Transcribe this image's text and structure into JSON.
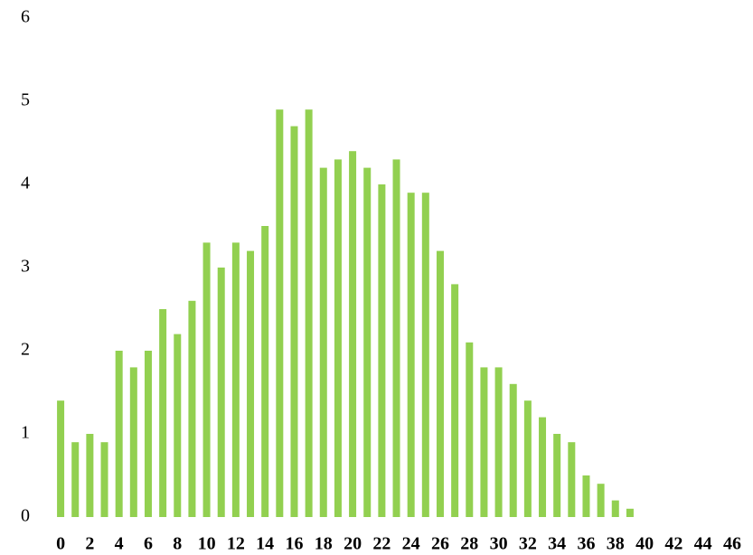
{
  "chart_data": {
    "type": "bar",
    "categories": [
      "0",
      null,
      "2",
      null,
      "4",
      null,
      "6",
      null,
      "8",
      null,
      "10",
      null,
      "12",
      null,
      "14",
      null,
      "16",
      null,
      "18",
      null,
      "20",
      null,
      "22",
      null,
      "24",
      null,
      "26",
      null,
      "28",
      null,
      "30",
      null,
      "32",
      null,
      "34",
      null,
      "36",
      null,
      "38",
      null,
      "40",
      null,
      "42",
      null,
      "44",
      null,
      "46"
    ],
    "values": [
      1.4,
      0.9,
      1.0,
      0.9,
      2.0,
      1.8,
      2.0,
      2.5,
      2.2,
      2.6,
      3.3,
      3.0,
      3.3,
      3.2,
      3.5,
      4.9,
      4.7,
      4.9,
      4.2,
      4.3,
      4.4,
      4.2,
      4.0,
      4.3,
      3.9,
      3.9,
      3.2,
      2.8,
      2.1,
      1.8,
      1.8,
      1.6,
      1.4,
      1.2,
      1.0,
      0.9,
      0.5,
      0.4,
      0.2,
      0.1,
      0,
      0,
      0,
      0,
      0,
      0,
      0
    ],
    "color": "#92d050",
    "ylim": [
      0,
      6
    ],
    "yticks": [
      0,
      1,
      2,
      3,
      4,
      5,
      6
    ],
    "grid": false
  }
}
